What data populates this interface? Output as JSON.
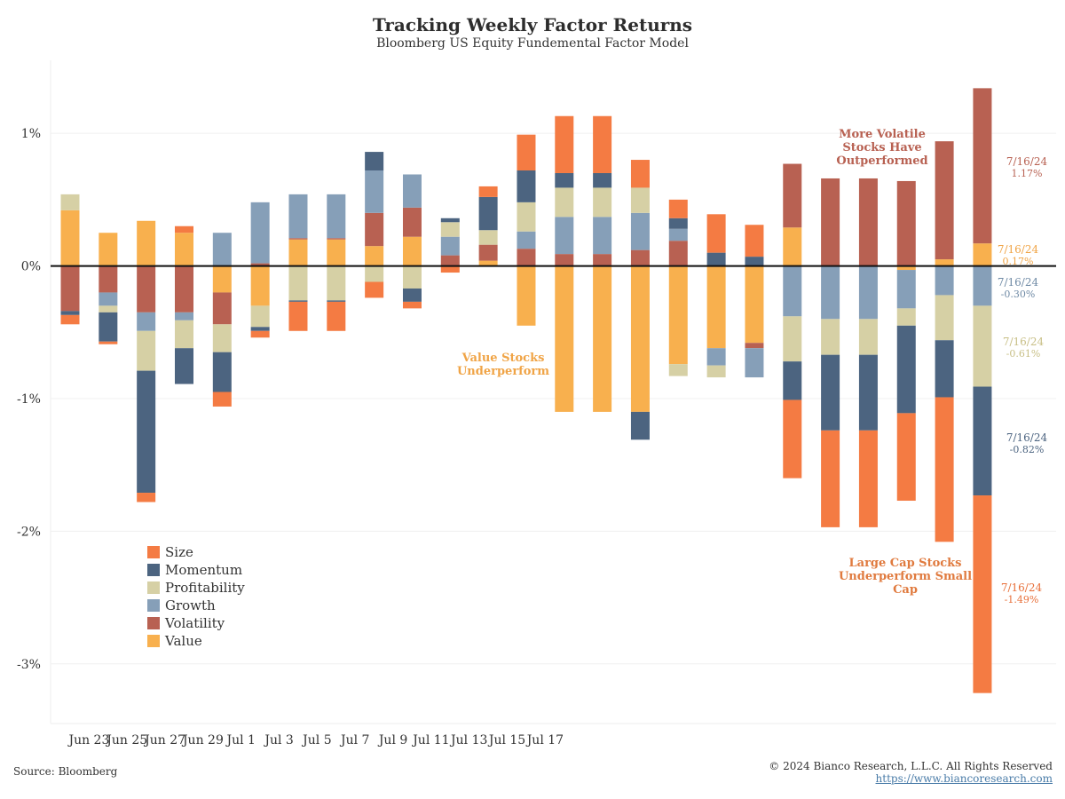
{
  "title": "Tracking Weekly Factor Returns",
  "subtitle": "Bloomberg US Equity Fundemental Factor Model",
  "source": "Source: Bloomberg",
  "copyright": "© 2024 Bianco Research, L.L.C. All Rights Reserved",
  "url": "https://www.biancoresearch.com",
  "colors": {
    "Size": "#f47b43",
    "Momentum": "#4c6480",
    "Profitability": "#d6d0a5",
    "Growth": "#869fb8",
    "Volatility": "#b86152",
    "Value": "#f8b04e"
  },
  "legend": [
    "Size",
    "Momentum",
    "Profitability",
    "Growth",
    "Volatility",
    "Value"
  ],
  "annotations": {
    "value": "Value Stocks\nUnderperform",
    "volatility": "More Volatile\nStocks Have\nOutperformed",
    "size": "Large Cap Stocks\nUnderperform Small\nCap"
  },
  "end_labels": [
    {
      "factor": "Volatility",
      "date": "7/16/24",
      "value": "1.17%"
    },
    {
      "factor": "Value",
      "date": "7/16/24",
      "value": "0.17%"
    },
    {
      "factor": "Growth",
      "date": "7/16/24",
      "value": "-0.30%"
    },
    {
      "factor": "Profitability",
      "date": "7/16/24",
      "value": "-0.61%"
    },
    {
      "factor": "Momentum",
      "date": "7/16/24",
      "value": "-0.82%"
    },
    {
      "factor": "Size",
      "date": "7/16/24",
      "value": "-1.49%"
    }
  ],
  "chart_data": {
    "type": "bar",
    "stacked": true,
    "title": "Tracking Weekly Factor Returns",
    "subtitle": "Bloomberg US Equity Fundemental Factor Model",
    "y_ticks": [
      "1%",
      "0%",
      "-1%",
      "-2%",
      "-3%"
    ],
    "y_tick_values": [
      1,
      0,
      -1,
      -2,
      -3
    ],
    "ylim": [
      -3.45,
      1.55
    ],
    "x_tick_labels": [
      "Jun 23",
      "Jun 25",
      "Jun 27",
      "Jun 29",
      "Jul 1",
      "Jul 3",
      "Jul 5",
      "Jul 7",
      "Jul 9",
      "Jul 11",
      "Jul 13",
      "Jul 15",
      "Jul 17"
    ],
    "x_tick_positions": [
      0.5,
      1.5,
      2.5,
      3.5,
      4.5,
      5.5,
      6.5,
      7.5,
      8.5,
      9.5,
      10.5,
      11.5,
      12.5
    ],
    "series_order": [
      "Value",
      "Volatility",
      "Growth",
      "Profitability",
      "Momentum",
      "Size"
    ],
    "series": [
      {
        "name": "Value",
        "values": [
          0.42,
          0.25,
          0.34,
          0.25,
          -0.2,
          -0.3,
          0.2,
          0.2,
          0.15,
          0.22,
          0.0,
          0.04,
          -0.45,
          -1.1,
          -1.1,
          -1.1,
          -0.74,
          -0.62,
          -0.58,
          0.29,
          0.0,
          0.0,
          -0.03,
          0.05,
          0.17
        ]
      },
      {
        "name": "Volatility",
        "values": [
          -0.34,
          -0.2,
          -0.35,
          -0.35,
          -0.24,
          0.02,
          0.01,
          0.01,
          0.25,
          0.22,
          0.08,
          0.12,
          0.13,
          0.09,
          0.09,
          0.12,
          0.19,
          0.0,
          -0.04,
          0.48,
          0.66,
          0.66,
          0.64,
          0.89,
          1.17
        ]
      },
      {
        "name": "Growth",
        "values": [
          0.0,
          -0.1,
          -0.14,
          -0.06,
          0.25,
          0.46,
          0.33,
          0.33,
          0.32,
          0.25,
          0.14,
          0.0,
          0.13,
          0.28,
          0.28,
          0.28,
          0.09,
          -0.13,
          -0.22,
          -0.38,
          -0.4,
          -0.4,
          -0.29,
          -0.22,
          -0.3
        ]
      },
      {
        "name": "Profitability",
        "values": [
          0.12,
          -0.05,
          -0.3,
          -0.21,
          -0.21,
          -0.16,
          -0.26,
          -0.26,
          -0.12,
          -0.17,
          0.11,
          0.11,
          0.22,
          0.22,
          0.22,
          0.19,
          -0.09,
          -0.09,
          0.0,
          -0.34,
          -0.27,
          -0.27,
          -0.13,
          -0.34,
          -0.61
        ]
      },
      {
        "name": "Momentum",
        "values": [
          -0.03,
          -0.22,
          -0.92,
          -0.27,
          -0.3,
          -0.03,
          -0.01,
          -0.01,
          0.14,
          -0.1,
          0.03,
          0.25,
          0.24,
          0.11,
          0.11,
          -0.21,
          0.08,
          0.1,
          0.07,
          -0.29,
          -0.57,
          -0.57,
          -0.66,
          -0.43,
          -0.82
        ]
      },
      {
        "name": "Size",
        "values": [
          -0.07,
          -0.02,
          -0.07,
          0.05,
          -0.11,
          -0.05,
          -0.22,
          -0.22,
          -0.12,
          -0.05,
          -0.05,
          0.08,
          0.27,
          0.43,
          0.43,
          0.21,
          0.14,
          0.29,
          0.24,
          -0.59,
          -0.73,
          -0.73,
          -0.66,
          -1.09,
          -1.49
        ]
      }
    ]
  }
}
